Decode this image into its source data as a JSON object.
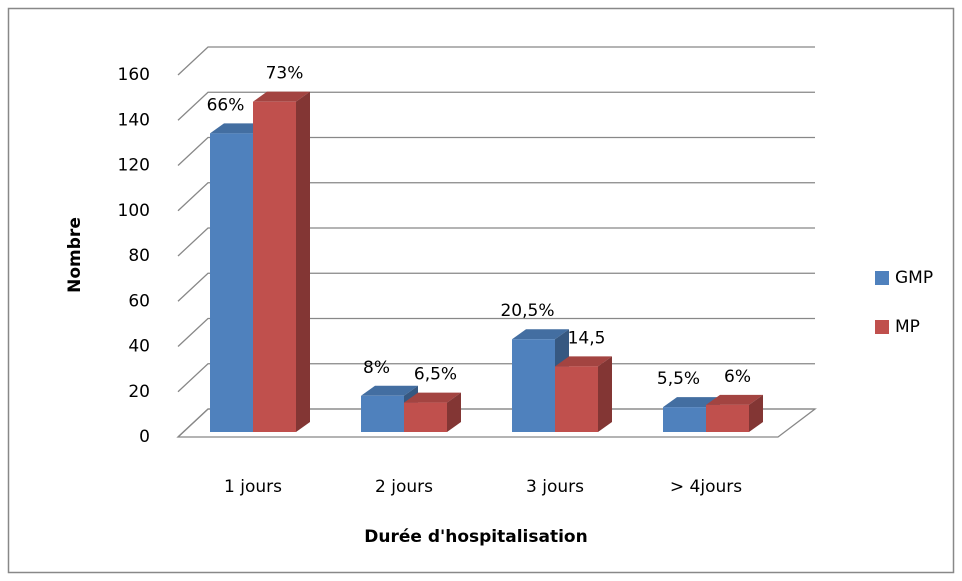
{
  "chart_data": {
    "type": "bar3d",
    "categories": [
      "1 jours",
      "2 jours",
      "3 jours",
      "> 4jours"
    ],
    "series": [
      {
        "name": "GMP",
        "color": "#4f81bd",
        "values": [
          132,
          16,
          41,
          11
        ],
        "percent_labels": [
          "66%",
          "8%",
          "20,5%",
          "5,5%"
        ]
      },
      {
        "name": "MP",
        "color": "#c0504d",
        "values": [
          146,
          13,
          29,
          12
        ],
        "percent_labels": [
          "73%",
          "6,5%",
          "14,5",
          "6%"
        ]
      }
    ],
    "xlabel": "Durée d'hospitalisation",
    "ylabel": "Nombre",
    "ylim": [
      0,
      160
    ],
    "yticks": [
      0,
      20,
      40,
      60,
      80,
      100,
      120,
      140,
      160
    ],
    "grid": true,
    "legend": "right"
  }
}
